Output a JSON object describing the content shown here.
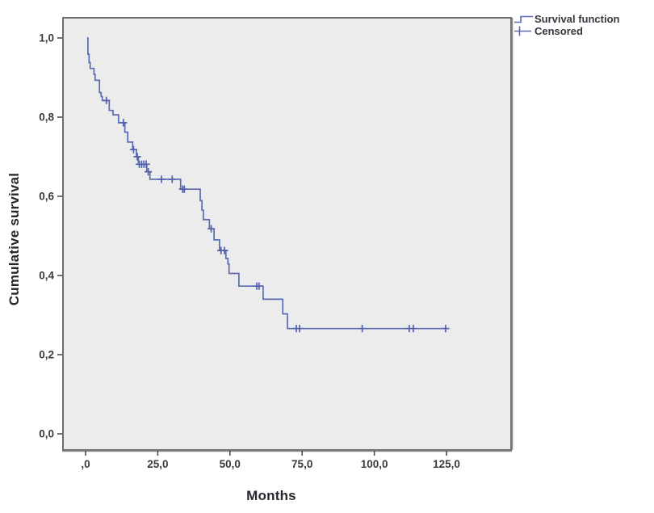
{
  "chart_data": {
    "type": "line",
    "subtype": "kaplan-meier-step",
    "title": "",
    "xlabel": "Months",
    "ylabel": "Cumulative survival",
    "x_tick_labels": [
      ",0",
      "25,0",
      "50,0",
      "75,0",
      "100,0",
      "125,0"
    ],
    "x_tick_values": [
      0,
      25,
      50,
      75,
      100,
      125
    ],
    "y_tick_labels": [
      "0,0",
      "0,2",
      "0,4",
      "0,6",
      "0,8",
      "1,0"
    ],
    "y_tick_values": [
      0,
      0.2,
      0.4,
      0.6,
      0.8,
      1.0
    ],
    "xlim": [
      -7.8,
      147.5
    ],
    "ylim": [
      -0.05,
      1.05
    ],
    "grid": false,
    "legend_position": "top-right-outside",
    "legend": [
      {
        "label": "Survival function",
        "marker": "step-line"
      },
      {
        "label": "Censored",
        "marker": "plus"
      }
    ],
    "series": [
      {
        "name": "Survival function",
        "steps": [
          [
            0.5,
            1.0
          ],
          [
            0.8,
            0.959
          ],
          [
            1.2,
            0.938
          ],
          [
            1.6,
            0.923
          ],
          [
            2.9,
            0.908
          ],
          [
            3.3,
            0.893
          ],
          [
            4.8,
            0.862
          ],
          [
            5.4,
            0.852
          ],
          [
            5.8,
            0.842
          ],
          [
            8.2,
            0.817
          ],
          [
            9.5,
            0.806
          ],
          [
            11.4,
            0.786
          ],
          [
            13.6,
            0.762
          ],
          [
            14.6,
            0.737
          ],
          [
            16.3,
            0.718
          ],
          [
            17.6,
            0.7
          ],
          [
            18.3,
            0.681
          ],
          [
            21.2,
            0.662
          ],
          [
            22.3,
            0.643
          ],
          [
            32.9,
            0.618
          ],
          [
            39.7,
            0.589
          ],
          [
            40.3,
            0.565
          ],
          [
            40.8,
            0.541
          ],
          [
            42.9,
            0.518
          ],
          [
            44.5,
            0.49
          ],
          [
            46.4,
            0.463
          ],
          [
            48.6,
            0.443
          ],
          [
            49.3,
            0.429
          ],
          [
            49.7,
            0.405
          ],
          [
            53.1,
            0.373
          ],
          [
            61.5,
            0.34
          ],
          [
            68.3,
            0.303
          ],
          [
            69.9,
            0.266
          ]
        ],
        "end_time": 125.6
      }
    ],
    "censored": [
      [
        7.2,
        0.842
      ],
      [
        13.1,
        0.786
      ],
      [
        16.6,
        0.718
      ],
      [
        17.9,
        0.7
      ],
      [
        18.6,
        0.681
      ],
      [
        19.4,
        0.681
      ],
      [
        20.2,
        0.681
      ],
      [
        21.0,
        0.681
      ],
      [
        21.7,
        0.662
      ],
      [
        26.3,
        0.643
      ],
      [
        30.0,
        0.643
      ],
      [
        33.6,
        0.618
      ],
      [
        34.2,
        0.618
      ],
      [
        43.5,
        0.518
      ],
      [
        46.9,
        0.463
      ],
      [
        48.1,
        0.463
      ],
      [
        59.3,
        0.373
      ],
      [
        60.1,
        0.373
      ],
      [
        73.0,
        0.266
      ],
      [
        74.1,
        0.266
      ],
      [
        95.8,
        0.266
      ],
      [
        112.1,
        0.266
      ],
      [
        113.5,
        0.266
      ],
      [
        124.7,
        0.266
      ]
    ],
    "colors": {
      "line": "#5a6ab3",
      "censor": "#4f60ac",
      "plot_background": "#ececec",
      "frame": "#6f6f6f",
      "tick_text": "#3a3a3a",
      "axis_title_text": "#26262e"
    }
  }
}
